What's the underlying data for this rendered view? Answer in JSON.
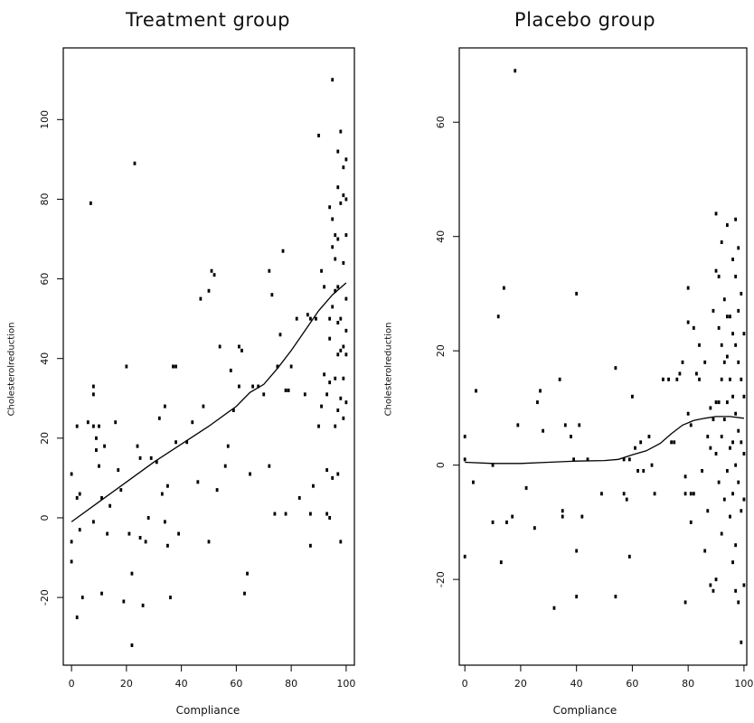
{
  "chart_data": [
    {
      "type": "scatter",
      "title": "Treatment group",
      "xlabel": "Compliance",
      "ylabel": "Cholesterol reduction",
      "xlim": [
        -3,
        103
      ],
      "ylim": [
        -37,
        118
      ],
      "xticks": [
        0,
        20,
        40,
        60,
        80,
        100
      ],
      "yticks": [
        -20,
        0,
        20,
        40,
        60,
        80,
        100
      ],
      "grid": false,
      "points": [
        [
          0,
          11
        ],
        [
          0,
          -6
        ],
        [
          0,
          -11
        ],
        [
          2,
          23
        ],
        [
          2,
          5
        ],
        [
          2,
          -25
        ],
        [
          3,
          -3
        ],
        [
          3,
          6
        ],
        [
          4,
          -20
        ],
        [
          6,
          24
        ],
        [
          7,
          79
        ],
        [
          8,
          33
        ],
        [
          8,
          31
        ],
        [
          8,
          23
        ],
        [
          8,
          -1
        ],
        [
          9,
          17
        ],
        [
          9,
          20
        ],
        [
          10,
          23
        ],
        [
          10,
          13
        ],
        [
          11,
          -19
        ],
        [
          11,
          5
        ],
        [
          12,
          18
        ],
        [
          13,
          -4
        ],
        [
          14,
          3
        ],
        [
          16,
          24
        ],
        [
          17,
          12
        ],
        [
          18,
          7
        ],
        [
          19,
          -21
        ],
        [
          20,
          38
        ],
        [
          21,
          -4
        ],
        [
          22,
          -14
        ],
        [
          22,
          -32
        ],
        [
          23,
          89
        ],
        [
          24,
          18
        ],
        [
          25,
          15
        ],
        [
          25,
          -5
        ],
        [
          26,
          -22
        ],
        [
          27,
          -6
        ],
        [
          28,
          0
        ],
        [
          29,
          15
        ],
        [
          31,
          14
        ],
        [
          32,
          25
        ],
        [
          33,
          6
        ],
        [
          34,
          28
        ],
        [
          34,
          -1
        ],
        [
          35,
          8
        ],
        [
          35,
          -7
        ],
        [
          36,
          -20
        ],
        [
          37,
          38
        ],
        [
          38,
          19
        ],
        [
          38,
          38
        ],
        [
          39,
          -4
        ],
        [
          42,
          19
        ],
        [
          44,
          24
        ],
        [
          46,
          9
        ],
        [
          47,
          55
        ],
        [
          48,
          28
        ],
        [
          50,
          57
        ],
        [
          50,
          -6
        ],
        [
          51,
          62
        ],
        [
          52,
          61
        ],
        [
          53,
          7
        ],
        [
          54,
          43
        ],
        [
          56,
          13
        ],
        [
          57,
          18
        ],
        [
          58,
          37
        ],
        [
          59,
          27
        ],
        [
          61,
          43
        ],
        [
          61,
          33
        ],
        [
          62,
          42
        ],
        [
          63,
          -19
        ],
        [
          64,
          -14
        ],
        [
          65,
          11
        ],
        [
          66,
          33
        ],
        [
          68,
          33
        ],
        [
          70,
          31
        ],
        [
          72,
          13
        ],
        [
          72,
          62
        ],
        [
          73,
          56
        ],
        [
          74,
          1
        ],
        [
          75,
          38
        ],
        [
          76,
          46
        ],
        [
          77,
          67
        ],
        [
          78,
          1
        ],
        [
          78,
          32
        ],
        [
          79,
          32
        ],
        [
          80,
          38
        ],
        [
          82,
          50
        ],
        [
          83,
          5
        ],
        [
          85,
          31
        ],
        [
          86,
          51
        ],
        [
          87,
          50
        ],
        [
          87,
          1
        ],
        [
          87,
          -7
        ],
        [
          88,
          8
        ],
        [
          89,
          50
        ],
        [
          90,
          96
        ],
        [
          90,
          23
        ],
        [
          91,
          62
        ],
        [
          91,
          28
        ],
        [
          92,
          58
        ],
        [
          92,
          36
        ],
        [
          93,
          31
        ],
        [
          93,
          1
        ],
        [
          93,
          12
        ],
        [
          94,
          78
        ],
        [
          94,
          50
        ],
        [
          94,
          45
        ],
        [
          94,
          34
        ],
        [
          94,
          0
        ],
        [
          95,
          110
        ],
        [
          95,
          75
        ],
        [
          95,
          68
        ],
        [
          95,
          53
        ],
        [
          95,
          10
        ],
        [
          96,
          71
        ],
        [
          96,
          65
        ],
        [
          96,
          57
        ],
        [
          96,
          35
        ],
        [
          96,
          23
        ],
        [
          97,
          92
        ],
        [
          97,
          83
        ],
        [
          97,
          70
        ],
        [
          97,
          58
        ],
        [
          97,
          49
        ],
        [
          97,
          41
        ],
        [
          97,
          27
        ],
        [
          97,
          11
        ],
        [
          98,
          97
        ],
        [
          98,
          79
        ],
        [
          98,
          50
        ],
        [
          98,
          42
        ],
        [
          98,
          30
        ],
        [
          98,
          -6
        ],
        [
          99,
          88
        ],
        [
          99,
          81
        ],
        [
          99,
          64
        ],
        [
          99,
          43
        ],
        [
          99,
          35
        ],
        [
          99,
          25
        ],
        [
          100,
          90
        ],
        [
          100,
          80
        ],
        [
          100,
          71
        ],
        [
          100,
          55
        ],
        [
          100,
          47
        ],
        [
          100,
          41
        ],
        [
          100,
          29
        ]
      ],
      "smooth_line": [
        [
          0,
          -1
        ],
        [
          10,
          4
        ],
        [
          20,
          9
        ],
        [
          30,
          14
        ],
        [
          40,
          18.5
        ],
        [
          50,
          23
        ],
        [
          60,
          28
        ],
        [
          65,
          31.5
        ],
        [
          70,
          33.5
        ],
        [
          75,
          37.5
        ],
        [
          80,
          42
        ],
        [
          85,
          47
        ],
        [
          90,
          52
        ],
        [
          95,
          56
        ],
        [
          100,
          59
        ]
      ],
      "line_color": "#000000",
      "point_color": "#000000"
    },
    {
      "type": "scatter",
      "title": "Placebo group",
      "xlabel": "Compliance",
      "ylabel": "Cholesterol reduction",
      "xlim": [
        -2,
        101
      ],
      "ylim": [
        -35,
        73
      ],
      "xticks": [
        0,
        20,
        40,
        60,
        80,
        100
      ],
      "yticks": [
        -20,
        0,
        20,
        40,
        60
      ],
      "grid": false,
      "points": [
        [
          0,
          5
        ],
        [
          0,
          1
        ],
        [
          0,
          -16
        ],
        [
          3,
          -3
        ],
        [
          4,
          13
        ],
        [
          10,
          0
        ],
        [
          10,
          -10
        ],
        [
          12,
          26
        ],
        [
          13,
          -17
        ],
        [
          14,
          31
        ],
        [
          15,
          -10
        ],
        [
          17,
          -9
        ],
        [
          18,
          69
        ],
        [
          19,
          7
        ],
        [
          22,
          -4
        ],
        [
          25,
          -11
        ],
        [
          26,
          11
        ],
        [
          27,
          13
        ],
        [
          28,
          6
        ],
        [
          32,
          -25
        ],
        [
          34,
          15
        ],
        [
          35,
          -8
        ],
        [
          35,
          -9
        ],
        [
          36,
          7
        ],
        [
          38,
          5
        ],
        [
          39,
          1
        ],
        [
          40,
          30
        ],
        [
          40,
          -15
        ],
        [
          40,
          -23
        ],
        [
          41,
          7
        ],
        [
          42,
          -9
        ],
        [
          44,
          1
        ],
        [
          49,
          -5
        ],
        [
          54,
          -23
        ],
        [
          54,
          17
        ],
        [
          57,
          1
        ],
        [
          57,
          -5
        ],
        [
          58,
          -6
        ],
        [
          59,
          1
        ],
        [
          59,
          -16
        ],
        [
          60,
          12
        ],
        [
          61,
          3
        ],
        [
          62,
          -1
        ],
        [
          63,
          4
        ],
        [
          64,
          -1
        ],
        [
          66,
          5
        ],
        [
          67,
          0
        ],
        [
          68,
          -5
        ],
        [
          71,
          15
        ],
        [
          73,
          15
        ],
        [
          74,
          4
        ],
        [
          75,
          4
        ],
        [
          76,
          15
        ],
        [
          77,
          16
        ],
        [
          78,
          18
        ],
        [
          79,
          -24
        ],
        [
          79,
          -2
        ],
        [
          79,
          -5
        ],
        [
          80,
          31
        ],
        [
          80,
          25
        ],
        [
          80,
          9
        ],
        [
          81,
          7
        ],
        [
          81,
          -5
        ],
        [
          81,
          -10
        ],
        [
          82,
          24
        ],
        [
          82,
          -5
        ],
        [
          83,
          16
        ],
        [
          84,
          21
        ],
        [
          84,
          15
        ],
        [
          85,
          -1
        ],
        [
          86,
          18
        ],
        [
          86,
          -15
        ],
        [
          87,
          5
        ],
        [
          87,
          -8
        ],
        [
          88,
          10
        ],
        [
          88,
          3
        ],
        [
          88,
          -21
        ],
        [
          89,
          27
        ],
        [
          89,
          8
        ],
        [
          89,
          -22
        ],
        [
          90,
          44
        ],
        [
          90,
          34
        ],
        [
          90,
          11
        ],
        [
          90,
          2
        ],
        [
          90,
          -20
        ],
        [
          91,
          33
        ],
        [
          91,
          24
        ],
        [
          91,
          11
        ],
        [
          91,
          -3
        ],
        [
          92,
          39
        ],
        [
          92,
          21
        ],
        [
          92,
          15
        ],
        [
          92,
          5
        ],
        [
          92,
          -12
        ],
        [
          93,
          29
        ],
        [
          93,
          18
        ],
        [
          93,
          8
        ],
        [
          93,
          -6
        ],
        [
          94,
          42
        ],
        [
          94,
          26
        ],
        [
          94,
          19
        ],
        [
          94,
          11
        ],
        [
          94,
          -1
        ],
        [
          95,
          26
        ],
        [
          95,
          15
        ],
        [
          95,
          3
        ],
        [
          95,
          -9
        ],
        [
          96,
          36
        ],
        [
          96,
          23
        ],
        [
          96,
          12
        ],
        [
          96,
          4
        ],
        [
          96,
          -5
        ],
        [
          96,
          -17
        ],
        [
          97,
          43
        ],
        [
          97,
          33
        ],
        [
          97,
          21
        ],
        [
          97,
          9
        ],
        [
          97,
          0
        ],
        [
          97,
          -14
        ],
        [
          97,
          -22
        ],
        [
          98,
          38
        ],
        [
          98,
          27
        ],
        [
          98,
          18
        ],
        [
          98,
          6
        ],
        [
          98,
          -3
        ],
        [
          98,
          -24
        ],
        [
          99,
          30
        ],
        [
          99,
          15
        ],
        [
          99,
          4
        ],
        [
          99,
          -8
        ],
        [
          99,
          -31
        ],
        [
          100,
          23
        ],
        [
          100,
          12
        ],
        [
          100,
          2
        ],
        [
          100,
          -6
        ],
        [
          100,
          -21
        ]
      ],
      "smooth_line": [
        [
          0,
          0.5
        ],
        [
          10,
          0.3
        ],
        [
          20,
          0.3
        ],
        [
          30,
          0.5
        ],
        [
          40,
          0.7
        ],
        [
          50,
          0.8
        ],
        [
          55,
          1
        ],
        [
          60,
          1.8
        ],
        [
          65,
          2.5
        ],
        [
          70,
          3.8
        ],
        [
          74,
          5.5
        ],
        [
          78,
          7
        ],
        [
          82,
          7.8
        ],
        [
          86,
          8.2
        ],
        [
          90,
          8.5
        ],
        [
          95,
          8.5
        ],
        [
          100,
          8.2
        ]
      ],
      "line_color": "#000000",
      "point_color": "#000000"
    }
  ],
  "ylabel_text": "Cholesterolreduction"
}
